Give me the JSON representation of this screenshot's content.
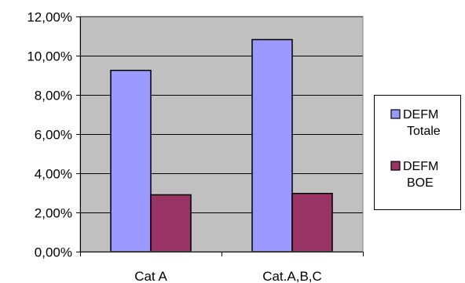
{
  "chart_data": {
    "type": "bar",
    "categories": [
      "Cat A",
      "Cat.A,B,C"
    ],
    "series": [
      {
        "name": "DEFM Totale",
        "values": [
          9.25,
          10.82
        ],
        "color": "#9999ff"
      },
      {
        "name": "DEFM BOE",
        "values": [
          2.9,
          2.97
        ],
        "color": "#993366"
      }
    ],
    "ylim": [
      0,
      12
    ],
    "yticks": [
      0,
      2,
      4,
      6,
      8,
      10,
      12
    ],
    "ytick_labels": [
      "0,00%",
      "2,00%",
      "4,00%",
      "6,00%",
      "8,00%",
      "10,00%",
      "12,00%"
    ],
    "title": "",
    "xlabel": "",
    "ylabel": "",
    "grid": true,
    "plot_background": "#c0c0c0",
    "legend_position": "right",
    "legend": [
      {
        "lines": [
          "DEFM",
          "Totale"
        ]
      },
      {
        "lines": [
          "DEFM",
          "BOE"
        ]
      }
    ]
  }
}
